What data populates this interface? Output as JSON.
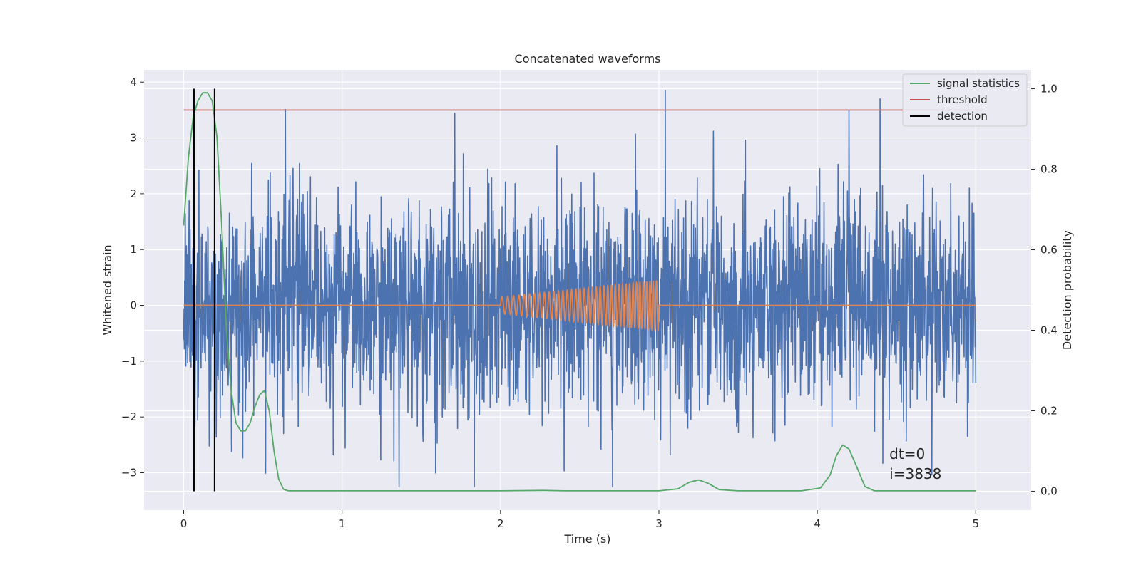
{
  "chart_data": {
    "type": "line",
    "title": "Concatenated waveforms",
    "xlabel": "Time (s)",
    "ylabel": "Whitened strain",
    "y2label": "Detection probability",
    "xlim": [
      -0.25,
      5.35
    ],
    "ylim": [
      -3.67,
      4.22
    ],
    "y2lim": [
      -0.047,
      1.047
    ],
    "xticks": [
      0,
      1,
      2,
      3,
      4,
      5
    ],
    "xtick_labels": [
      "0",
      "1",
      "2",
      "3",
      "4",
      "5"
    ],
    "yticks": [
      -3,
      -2,
      -1,
      0,
      1,
      2,
      3,
      4
    ],
    "ytick_labels": [
      "−3",
      "−2",
      "−1",
      "0",
      "1",
      "2",
      "3",
      "4"
    ],
    "y2ticks": [
      0.0,
      0.2,
      0.4,
      0.6,
      0.8,
      1.0
    ],
    "y2tick_labels": [
      "0.0",
      "0.2",
      "0.4",
      "0.6",
      "0.8",
      "1.0"
    ],
    "grid": true,
    "legend_position": "top-right",
    "legend": [
      {
        "label": "signal statistics",
        "color": "#55a868"
      },
      {
        "label": "threshold",
        "color": "#c44e52"
      },
      {
        "label": "detection",
        "color": "#000000"
      }
    ],
    "colors": {
      "noise": "#4c72b0",
      "injected_signal": "#dd8452",
      "signal_statistics": "#55a868",
      "threshold": "#c44e52",
      "detection": "#000000",
      "axes_background": "#eaeaf2",
      "grid": "#ffffff"
    },
    "series": [
      {
        "kind": "noise",
        "axis": "left",
        "x_range": [
          0,
          5
        ],
        "std": 0.95,
        "y_range_observed": [
          -3.25,
          3.85
        ],
        "notable_peaks": [
          {
            "x": 3.04,
            "y": 3.85
          },
          {
            "x": 4.2,
            "y": 3.5
          },
          {
            "x": 1.36,
            "y": -3.25
          }
        ]
      },
      {
        "kind": "chirp",
        "axis": "left",
        "x_range": [
          2.0,
          3.0
        ],
        "amplitude_start": 0.15,
        "amplitude_end": 0.45,
        "cycles": 38,
        "baseline": 0
      },
      {
        "name": "threshold",
        "axis": "left",
        "x": [
          0,
          5.05
        ],
        "y": [
          3.5,
          3.5
        ]
      },
      {
        "name": "signal statistics",
        "axis": "right",
        "x": [
          0.0,
          0.03,
          0.06,
          0.09,
          0.12,
          0.15,
          0.18,
          0.21,
          0.24,
          0.27,
          0.3,
          0.33,
          0.36,
          0.39,
          0.42,
          0.45,
          0.48,
          0.51,
          0.54,
          0.57,
          0.6,
          0.63,
          0.66,
          0.8,
          1.0,
          1.5,
          2.0,
          2.27,
          2.4,
          2.6,
          3.0,
          3.12,
          3.19,
          3.25,
          3.31,
          3.38,
          3.5,
          3.9,
          4.02,
          4.08,
          4.12,
          4.16,
          4.2,
          4.25,
          4.3,
          4.36,
          4.5,
          5.0
        ],
        "y": [
          0.66,
          0.83,
          0.93,
          0.97,
          0.99,
          0.99,
          0.97,
          0.88,
          0.66,
          0.4,
          0.25,
          0.17,
          0.15,
          0.15,
          0.17,
          0.21,
          0.24,
          0.25,
          0.2,
          0.1,
          0.03,
          0.005,
          0.001,
          0.001,
          0.001,
          0.001,
          0.001,
          0.002,
          0.001,
          0.001,
          0.001,
          0.006,
          0.022,
          0.028,
          0.02,
          0.004,
          0.001,
          0.001,
          0.008,
          0.04,
          0.088,
          0.115,
          0.105,
          0.06,
          0.012,
          0.001,
          0.001,
          0.001
        ]
      },
      {
        "name": "detection",
        "axis": "right",
        "kind": "vertical_lines",
        "x": [
          0.065,
          0.195
        ],
        "y_range": [
          0.0,
          1.0
        ]
      }
    ],
    "annotations": [
      "dt=0",
      "i=3838"
    ],
    "annotation_position": [
      4.5,
      -2.75
    ]
  }
}
